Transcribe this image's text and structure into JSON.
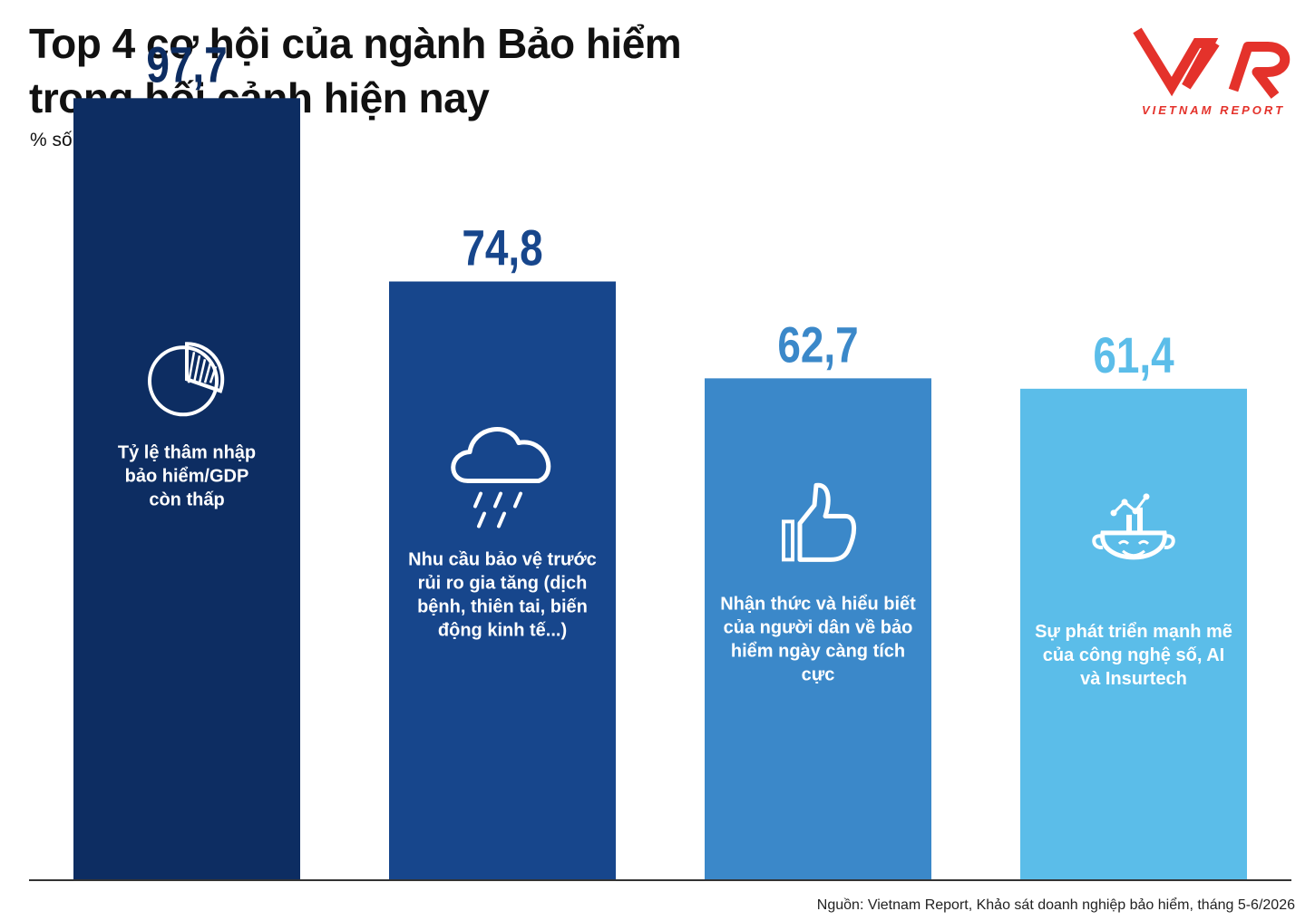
{
  "title_lines": [
    "Top 4 cơ hội của ngành Bảo hiểm",
    "trong bối cảnh hiện nay"
  ],
  "unit_label": "% số DN",
  "logo": {
    "text": "VIETNAM REPORT",
    "color": "#e4322b"
  },
  "source": "Nguồn: Vietnam Report, Khảo sát doanh nghiệp bảo hiểm, tháng 5-6/2026",
  "chart_data": {
    "type": "bar",
    "categories": [
      "Tỷ lệ thâm nhập bảo hiểm/GDP còn thấp",
      "Nhu cầu bảo vệ trước rủi ro gia tăng (dịch bệnh, thiên tai, biến động kinh tế...)",
      "Nhận thức và hiểu biết của người dân về bảo hiểm ngày càng tích cực",
      "Sự phát triển mạnh mẽ của công nghệ số, AI và Insurtech"
    ],
    "category_lines": [
      [
        "Tỷ lệ thâm nhập",
        "bảo hiểm/GDP",
        "còn thấp"
      ],
      [
        "Nhu cầu bảo vệ trước",
        "rủi ro gia tăng (dịch",
        "bệnh, thiên tai, biến",
        "động kinh tế...)"
      ],
      [
        "Nhận thức và hiểu biết",
        "của người dân về bảo",
        "hiểm ngày càng tích",
        "cực"
      ],
      [
        "Sự phát triển mạnh mẽ",
        "của công nghệ số, AI",
        "và Insurtech"
      ]
    ],
    "values": [
      97.7,
      74.8,
      62.7,
      61.4
    ],
    "value_labels": [
      "97,7",
      "74,8",
      "62,7",
      "61,4"
    ],
    "icons": [
      "pie-chart-icon",
      "rain-cloud-icon",
      "thumbs-up-icon",
      "tech-head-icon"
    ],
    "bar_colors": [
      "#0d2d62",
      "#17468c",
      "#3b88c9",
      "#5bbde9"
    ],
    "label_colors": [
      "#0d2d62",
      "#17468c",
      "#3b88c9",
      "#5bbde9"
    ],
    "ylim": [
      0,
      100
    ],
    "grid": false,
    "legend": "none"
  }
}
